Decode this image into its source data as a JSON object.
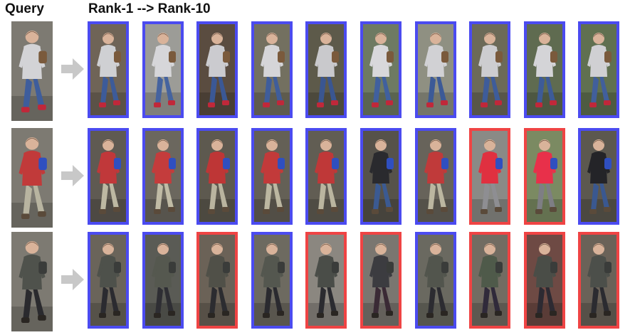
{
  "header": {
    "query_label": "Query",
    "rank_label": "Rank-1  -->  Rank-10"
  },
  "colors": {
    "positive_border": "#4b4bf0",
    "negative_border": "#ef4444",
    "arrow": "#c8c8c8"
  },
  "rows": [
    {
      "query": {
        "jacket": "#d3d3d6",
        "pants": "#3e5d9c",
        "shoes": "#c0283a",
        "bag": "#7a5a3c"
      },
      "results": [
        {
          "match": true,
          "jacket": "#cfd0d3",
          "pants": "#3d5b99",
          "bg": "#6f6457"
        },
        {
          "match": true,
          "jacket": "#d6d6d9",
          "pants": "#45639f",
          "bg": "#9c9c97"
        },
        {
          "match": true,
          "jacket": "#cbcbcf",
          "pants": "#3b5895",
          "bg": "#5a4c40"
        },
        {
          "match": true,
          "jacket": "#d5d5d8",
          "pants": "#3f5d9b",
          "bg": "#737060"
        },
        {
          "match": true,
          "jacket": "#c9c9cc",
          "pants": "#3a5691",
          "bg": "#5d5a4a"
        },
        {
          "match": true,
          "jacket": "#d8d8db",
          "pants": "#40609e",
          "bg": "#6e7a62"
        },
        {
          "match": true,
          "jacket": "#d1d1d4",
          "pants": "#3c5a97",
          "bg": "#8f9082"
        },
        {
          "match": true,
          "jacket": "#cdcdd0",
          "pants": "#3e5c9a",
          "bg": "#6c6a58"
        },
        {
          "match": true,
          "jacket": "#d4d4d7",
          "pants": "#3d5b98",
          "bg": "#5f6b50"
        },
        {
          "match": true,
          "jacket": "#d0d0d3",
          "pants": "#415f9c",
          "bg": "#607050"
        }
      ]
    },
    {
      "query": {
        "jacket": "#c13a3a",
        "pants": "#b8b4a0",
        "shoes": "#5a4a3a",
        "bag": "#2f4fc0"
      },
      "results": [
        {
          "match": true,
          "jacket": "#c0383a",
          "pants": "#bdb8a2",
          "bg": "#5f5a52"
        },
        {
          "match": true,
          "jacket": "#c43c3c",
          "pants": "#c0bba5",
          "bg": "#6b675e"
        },
        {
          "match": true,
          "jacket": "#be3636",
          "pants": "#b9b49f",
          "bg": "#5d594f"
        },
        {
          "match": true,
          "jacket": "#c23a3a",
          "pants": "#bcb7a1",
          "bg": "#646056"
        },
        {
          "match": true,
          "jacket": "#bf3838",
          "pants": "#bab59f",
          "bg": "#615d53"
        },
        {
          "match": true,
          "jacket": "#2a2a2e",
          "pants": "#3b5a92",
          "bg": "#56524a"
        },
        {
          "match": true,
          "jacket": "#c03a3a",
          "pants": "#bbb6a0",
          "bg": "#67635a"
        },
        {
          "match": false,
          "jacket": "#e03040",
          "pants": "#8e8e92",
          "bg": "#8a8a86"
        },
        {
          "match": false,
          "jacket": "#e8304a",
          "pants": "#7e7e84",
          "bg": "#7b8a62"
        },
        {
          "match": true,
          "jacket": "#242428",
          "pants": "#3a5890",
          "bg": "#5c584f"
        }
      ]
    },
    {
      "query": {
        "jacket": "#4f524c",
        "pants": "#2a2a2e",
        "shoes": "#2a2622",
        "bag": "#3a3c3a"
      },
      "results": [
        {
          "match": true,
          "jacket": "#4e514b",
          "pants": "#2b2b30",
          "bg": "#6a645a"
        },
        {
          "match": true,
          "jacket": "#55584f",
          "pants": "#2e2e33",
          "bg": "#5a5b55"
        },
        {
          "match": false,
          "jacket": "#505048",
          "pants": "#2c2c30",
          "bg": "#6b6257"
        },
        {
          "match": true,
          "jacket": "#54574f",
          "pants": "#2a2a2f",
          "bg": "#6d6a60"
        },
        {
          "match": false,
          "jacket": "#4a4d48",
          "pants": "#2b2b30",
          "bg": "#8b8780"
        },
        {
          "match": false,
          "jacket": "#3c3c40",
          "pants": "#3a2a35",
          "bg": "#7a7670"
        },
        {
          "match": true,
          "jacket": "#52554d",
          "pants": "#2c2c31",
          "bg": "#6a6960"
        },
        {
          "match": false,
          "jacket": "#4f5a4a",
          "pants": "#302a3a",
          "bg": "#726c62"
        },
        {
          "match": false,
          "jacket": "#4a4d47",
          "pants": "#2d2a32",
          "bg": "#6e4a44"
        },
        {
          "match": false,
          "jacket": "#4c4f4a",
          "pants": "#2b2b30",
          "bg": "#6a6258"
        }
      ]
    }
  ]
}
